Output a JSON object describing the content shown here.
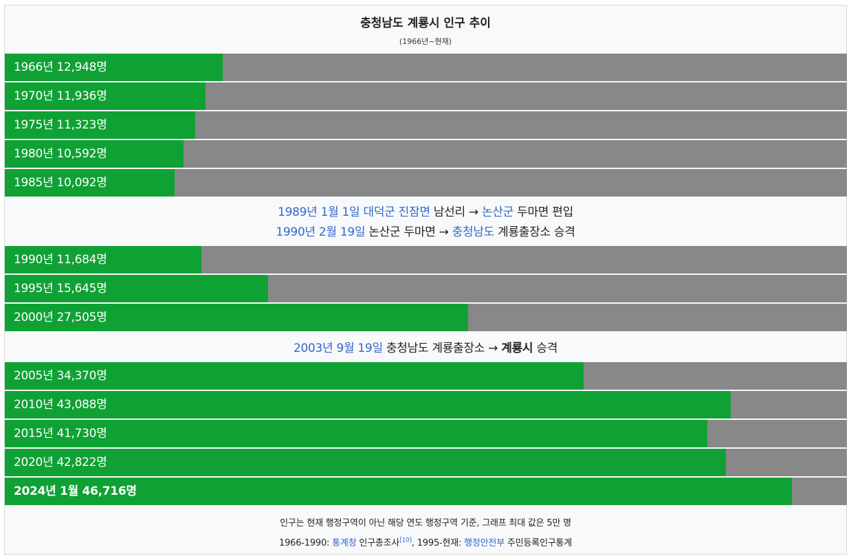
{
  "chart_data": {
    "type": "bar",
    "title": "충청남도 계룡시 인구 추이",
    "subtitle": "(1966년~현재)",
    "max_value": 50000,
    "rows": [
      {
        "label": "1966년 12,948명",
        "value": 12948,
        "bold": false
      },
      {
        "label": "1970년 11,936명",
        "value": 11936,
        "bold": false
      },
      {
        "label": "1975년 11,323명",
        "value": 11323,
        "bold": false
      },
      {
        "label": "1980년 10,592명",
        "value": 10592,
        "bold": false
      },
      {
        "label": "1985년 10,092명",
        "value": 10092,
        "bold": false
      },
      {
        "label": "1990년 11,684명",
        "value": 11684,
        "bold": false
      },
      {
        "label": "1995년 15,645명",
        "value": 15645,
        "bold": false
      },
      {
        "label": "2000년 27,505명",
        "value": 27505,
        "bold": false
      },
      {
        "label": "2005년 34,370명",
        "value": 34370,
        "bold": false
      },
      {
        "label": "2010년 43,088명",
        "value": 43088,
        "bold": false
      },
      {
        "label": "2015년 41,730명",
        "value": 41730,
        "bold": false
      },
      {
        "label": "2020년 42,822명",
        "value": 42822,
        "bold": false
      },
      {
        "label": "2024년 1월 46,716명",
        "value": 46716,
        "bold": true
      }
    ],
    "colors": {
      "bar": "#10a135",
      "background": "#888888",
      "link": "#3366cc"
    }
  },
  "notes": {
    "n1": {
      "a": "1989년 1월 1일",
      "b": "대덕군",
      "c": "진잠면",
      "d": "남선리 → ",
      "e": "논산군",
      "f": " 두마면 편입"
    },
    "n2": {
      "a": "1990년 2월 19일",
      "b": " 논산군 두마면 → ",
      "c": "충청남도",
      "d": " 계룡출장소 승격"
    },
    "n3": {
      "a": "2003년 9월 19일",
      "b": " 충청남도 계룡출장소 → ",
      "c": "계룡시",
      "d": " 승격"
    }
  },
  "footer": {
    "line1": "인구는 현재 행정구역이 아닌 해당 연도 행정구역 기준, 그래프 최대 값은 5만 명",
    "l2a": "1966-1990: ",
    "l2b": "통계청",
    "l2c": " 인구총조사",
    "l2sup": "[10]",
    "l2d": ", 1995-현재: ",
    "l2e": "행정안전부",
    "l2f": " 주민등록인구통계"
  }
}
